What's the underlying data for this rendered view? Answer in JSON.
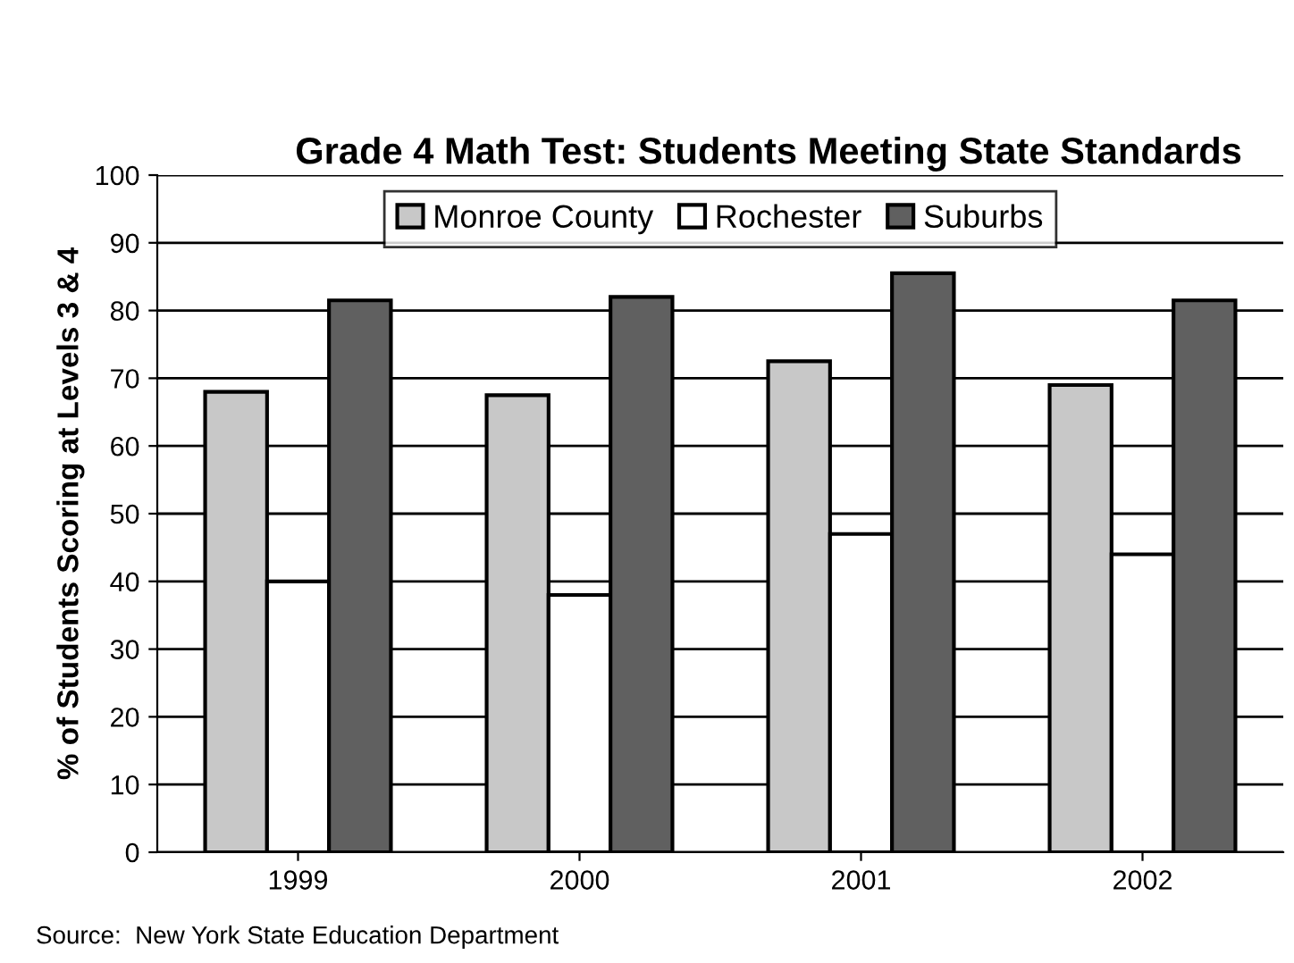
{
  "chart_data": {
    "type": "bar",
    "title": "Grade 4 Math Test: Students Meeting State Standards",
    "ylabel": "% of Students Scoring at Levels 3 & 4",
    "categories": [
      "1999",
      "2000",
      "2001",
      "2002"
    ],
    "series": [
      {
        "name": "Monroe County",
        "color": "#c8c8c8",
        "values": [
          68,
          67.5,
          72.5,
          69
        ]
      },
      {
        "name": "Rochester",
        "color": "#ffffff",
        "values": [
          40,
          38,
          47,
          44
        ]
      },
      {
        "name": "Suburbs",
        "color": "#606060",
        "values": [
          81.5,
          82,
          85.5,
          81.5
        ]
      }
    ],
    "ylim": [
      0,
      100
    ],
    "yticks": [
      0,
      10,
      20,
      30,
      40,
      50,
      60,
      70,
      80,
      90,
      100
    ],
    "grid": "y",
    "legend": "top",
    "annotations": [
      "Source:  New York State Education Department"
    ]
  }
}
